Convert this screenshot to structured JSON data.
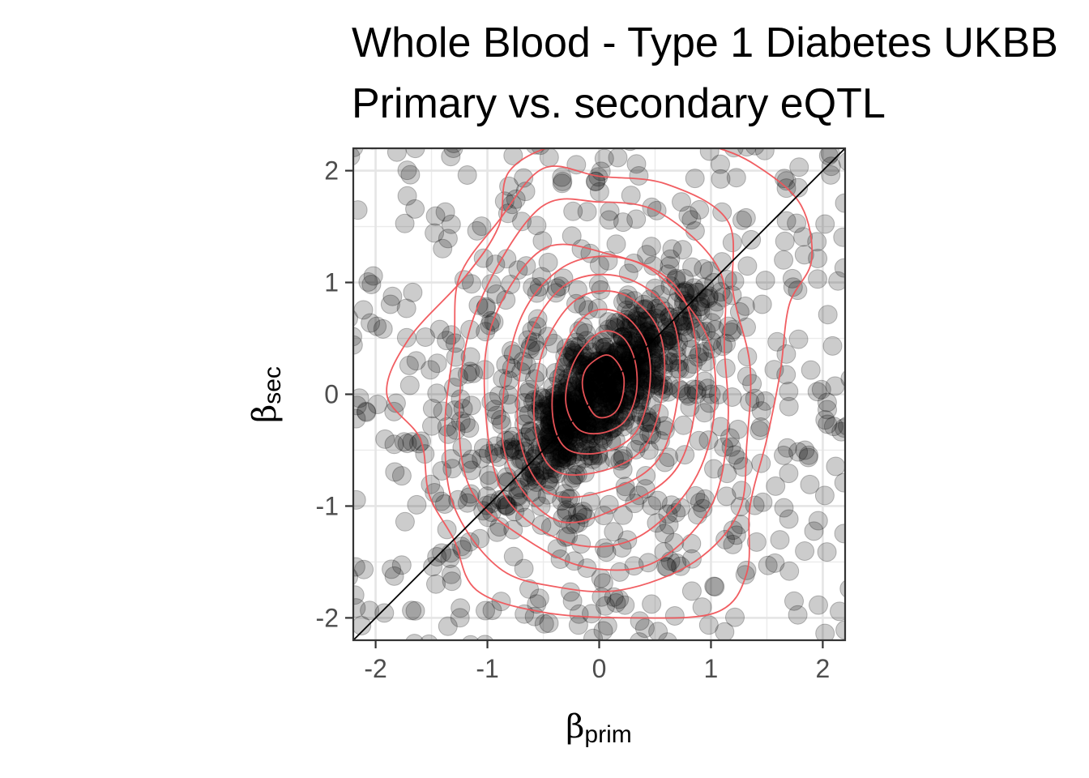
{
  "chart_data": {
    "type": "scatter",
    "title": "Whole Blood - Type 1 Diabetes UKBB",
    "subtitle": "Primary vs. secondary eQTL",
    "xlabel": {
      "symbol": "β",
      "sub": "prim"
    },
    "ylabel": {
      "symbol": "β",
      "sub": "sec"
    },
    "xlim": [
      -2.2,
      2.2
    ],
    "ylim": [
      -2.2,
      2.2
    ],
    "xticks": [
      -2,
      -1,
      0,
      1,
      2
    ],
    "yticks": [
      -2,
      -1,
      0,
      1,
      2
    ],
    "xtick_labels": [
      "-2",
      "-1",
      "0",
      "1",
      "2"
    ],
    "ytick_labels": [
      "-2",
      "-1",
      "0",
      "1",
      "2"
    ],
    "grid": true,
    "reference_line": {
      "slope": 1,
      "intercept": 0,
      "color": "#000000"
    },
    "point_color": "#000000",
    "point_opacity": 0.2,
    "contour_color": "#f0555a",
    "contour_levels": [
      {
        "points": [
          [
            -0.1,
            0.25
          ],
          [
            0.05,
            0.35
          ],
          [
            0.15,
            0.3
          ],
          [
            0.22,
            0.15
          ],
          [
            0.2,
            -0.05
          ],
          [
            0.12,
            -0.18
          ],
          [
            -0.02,
            -0.2
          ],
          [
            -0.12,
            -0.05
          ],
          [
            -0.15,
            0.12
          ]
        ]
      },
      {
        "points": [
          [
            -0.22,
            0.3
          ],
          [
            0.0,
            0.55
          ],
          [
            0.2,
            0.52
          ],
          [
            0.32,
            0.3
          ],
          [
            0.33,
            0.0
          ],
          [
            0.22,
            -0.25
          ],
          [
            0.0,
            -0.35
          ],
          [
            -0.2,
            -0.3
          ],
          [
            -0.3,
            -0.05
          ]
        ]
      },
      {
        "points": [
          [
            -0.35,
            0.35
          ],
          [
            -0.1,
            0.72
          ],
          [
            0.2,
            0.72
          ],
          [
            0.42,
            0.45
          ],
          [
            0.45,
            0.05
          ],
          [
            0.32,
            -0.35
          ],
          [
            0.02,
            -0.52
          ],
          [
            -0.3,
            -0.48
          ],
          [
            -0.42,
            -0.15
          ]
        ]
      },
      {
        "points": [
          [
            -0.5,
            0.4
          ],
          [
            -0.2,
            0.85
          ],
          [
            0.2,
            0.9
          ],
          [
            0.52,
            0.6
          ],
          [
            0.58,
            0.1
          ],
          [
            0.42,
            -0.45
          ],
          [
            0.05,
            -0.68
          ],
          [
            -0.4,
            -0.68
          ],
          [
            -0.58,
            -0.25
          ]
        ]
      },
      {
        "points": [
          [
            -0.65,
            0.45
          ],
          [
            -0.3,
            0.98
          ],
          [
            0.2,
            1.05
          ],
          [
            0.62,
            0.75
          ],
          [
            0.72,
            0.15
          ],
          [
            0.55,
            -0.55
          ],
          [
            0.1,
            -0.85
          ],
          [
            -0.45,
            -0.88
          ],
          [
            -0.72,
            -0.35
          ]
        ]
      },
      {
        "points": [
          [
            -0.75,
            0.55
          ],
          [
            -0.35,
            1.12
          ],
          [
            0.2,
            1.22
          ],
          [
            0.72,
            0.92
          ],
          [
            0.88,
            0.2
          ],
          [
            0.72,
            -0.62
          ],
          [
            0.2,
            -1.0
          ],
          [
            -0.4,
            -1.12
          ],
          [
            -0.85,
            -0.5
          ]
        ]
      },
      {
        "points": [
          [
            -0.95,
            0.65
          ],
          [
            -0.5,
            1.3
          ],
          [
            0.1,
            1.25
          ],
          [
            0.55,
            1.05
          ],
          [
            0.98,
            0.48
          ],
          [
            1.02,
            -0.25
          ],
          [
            0.8,
            -0.85
          ],
          [
            0.3,
            -1.3
          ],
          [
            -0.3,
            -1.32
          ],
          [
            -0.85,
            -0.9
          ],
          [
            -1.02,
            -0.1
          ]
        ]
      },
      {
        "points": [
          [
            -1.1,
            0.75
          ],
          [
            -0.55,
            1.65
          ],
          [
            0.0,
            1.72
          ],
          [
            0.55,
            1.62
          ],
          [
            1.08,
            1.1
          ],
          [
            1.12,
            0.4
          ],
          [
            1.15,
            -0.3
          ],
          [
            1.0,
            -1.0
          ],
          [
            0.5,
            -1.5
          ],
          [
            -0.1,
            -1.55
          ],
          [
            -0.65,
            -1.3
          ],
          [
            -1.15,
            -0.85
          ],
          [
            -1.25,
            -0.1
          ]
        ]
      },
      {
        "points": [
          [
            -1.25,
            1.05
          ],
          [
            -0.9,
            1.55
          ],
          [
            -0.5,
            2.02
          ],
          [
            0.0,
            1.95
          ],
          [
            0.6,
            1.88
          ],
          [
            1.15,
            1.55
          ],
          [
            1.2,
            0.9
          ],
          [
            1.35,
            0.25
          ],
          [
            1.32,
            -0.45
          ],
          [
            1.25,
            -1.05
          ],
          [
            0.85,
            -1.5
          ],
          [
            0.2,
            -1.75
          ],
          [
            -0.4,
            -1.72
          ],
          [
            -0.9,
            -1.55
          ],
          [
            -1.3,
            -1.0
          ],
          [
            -1.38,
            -0.3
          ],
          [
            -1.3,
            0.45
          ]
        ]
      },
      {
        "points": [
          [
            -1.9,
            0.0
          ],
          [
            -1.7,
            0.5
          ],
          [
            -1.2,
            1.05
          ],
          [
            -0.9,
            1.5
          ],
          [
            -0.8,
            2.0
          ],
          [
            -0.3,
            2.25
          ],
          [
            0.5,
            2.3
          ],
          [
            1.0,
            2.22
          ],
          [
            1.4,
            2.05
          ],
          [
            1.8,
            1.7
          ],
          [
            1.9,
            1.2
          ],
          [
            1.7,
            0.8
          ],
          [
            1.62,
            0.2
          ],
          [
            1.5,
            -0.4
          ],
          [
            1.35,
            -1.0
          ],
          [
            1.32,
            -1.6
          ],
          [
            1.05,
            -1.95
          ],
          [
            0.3,
            -2.0
          ],
          [
            -0.5,
            -1.95
          ],
          [
            -1.1,
            -1.75
          ],
          [
            -1.3,
            -1.3
          ],
          [
            -1.52,
            -0.9
          ],
          [
            -1.6,
            -0.4
          ]
        ]
      }
    ]
  }
}
